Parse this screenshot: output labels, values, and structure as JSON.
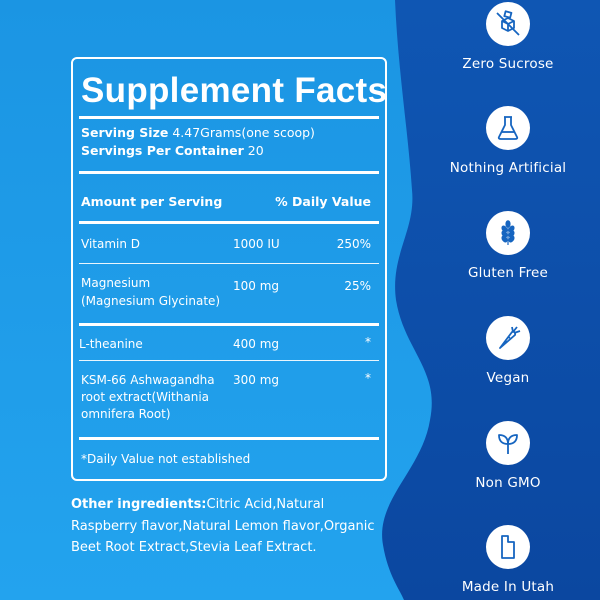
{
  "facts": {
    "title": "Supplement Facts",
    "serving_size_label": "Serving Size",
    "serving_size_value": "4.47Grams(one scoop)",
    "servings_label": "Servings Per Container",
    "servings_value": "20",
    "col_amount": "Amount per Serving",
    "col_dv": "% Daily Value",
    "rows": [
      {
        "name": "Vitamin D",
        "amount": "1000 IU",
        "dv": "250%"
      },
      {
        "name": "Magnesium",
        "name2": "(Magnesium Glycinate)",
        "amount": "100 mg",
        "dv": "25%"
      },
      {
        "name": "L-theanine",
        "amount": "400 mg",
        "dv": "*"
      },
      {
        "name": "KSM-66 Ashwagandha",
        "name2": "root extract(Withania",
        "name3": "omnifera Root)",
        "amount": "300 mg",
        "dv": "*"
      }
    ],
    "footnote": "*Daily Value not established"
  },
  "ingredients": {
    "label": "Other ingredients:",
    "text": "Citric Acid,Natural Raspberry flavor,Natural Lemon flavor,Organic Beet Root Extract,Stevia Leaf Extract."
  },
  "badges": [
    {
      "label": "Zero Sucrose",
      "icon": "cube-crossed-icon"
    },
    {
      "label": "Nothing Artificial",
      "icon": "flask-icon"
    },
    {
      "label": "Gluten Free",
      "icon": "wheat-icon"
    },
    {
      "label": "Vegan",
      "icon": "carrot-icon"
    },
    {
      "label": "Non GMO",
      "icon": "leaf-icon"
    },
    {
      "label": "Made In Utah",
      "icon": "utah-icon"
    }
  ],
  "colors": {
    "left_blue": "#1f9ae6",
    "right_blue": "#0d4ea8",
    "icon_blue": "#1665c0",
    "text": "#ffffff"
  }
}
